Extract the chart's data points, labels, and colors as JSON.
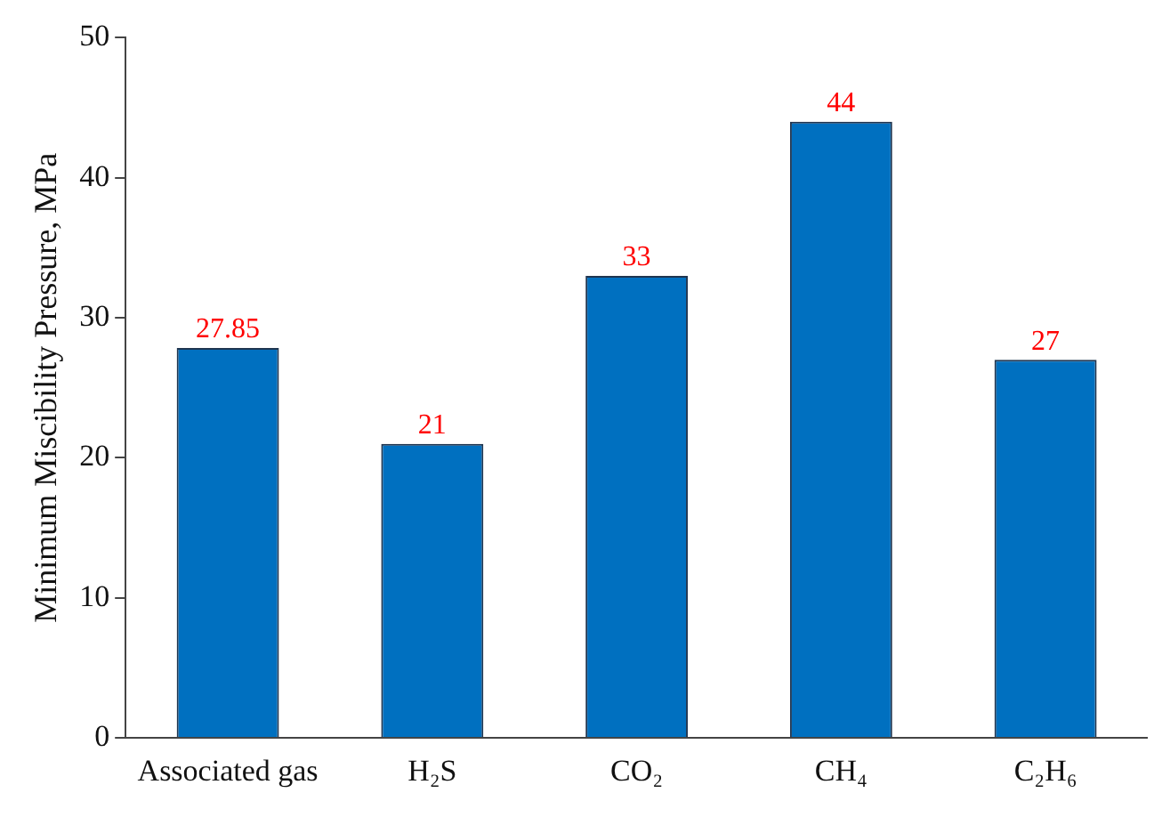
{
  "chart_data": {
    "type": "bar",
    "ylabel": "Minimum Miscibility Pressure, MPa",
    "categories": [
      "Associated gas",
      "H₂S",
      "CO₂",
      "CH₄",
      "C₂H₆"
    ],
    "values": [
      27.85,
      21,
      33,
      44,
      27
    ],
    "color": "#0070c0",
    "ylim": [
      0,
      50
    ],
    "yticks": [
      0,
      10,
      20,
      30,
      40,
      50
    ],
    "grid": false,
    "legend": false,
    "data_labels": true
  }
}
